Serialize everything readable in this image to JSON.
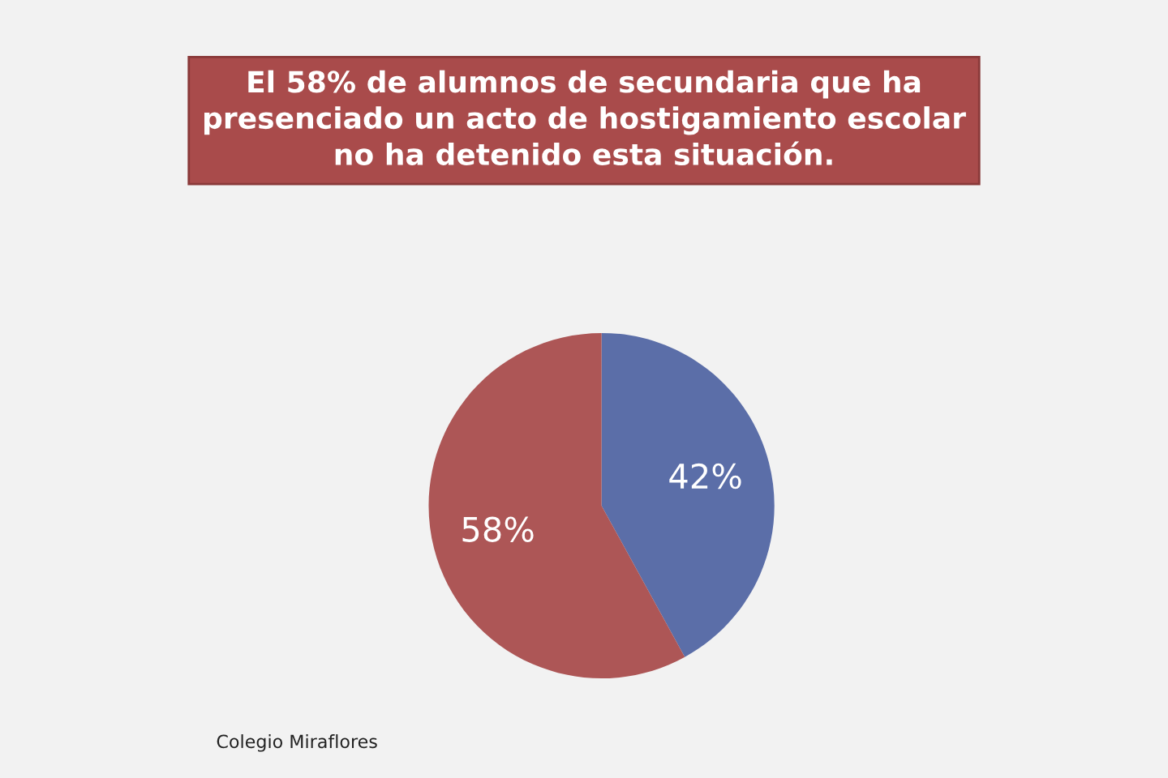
{
  "chart_data": {
    "type": "pie",
    "title": "El 58% de alumnos de secundaria que ha\npresenciado un acto de hostigamiento escolar\nno ha detenido esta situación.",
    "categories": [
      null,
      null
    ],
    "values": [
      42,
      58
    ],
    "colors": [
      "#5b6ea8",
      "#ad5656"
    ],
    "value_labels": [
      "42%",
      "58%"
    ],
    "annotations": [
      "Colegio Miraflores"
    ]
  }
}
